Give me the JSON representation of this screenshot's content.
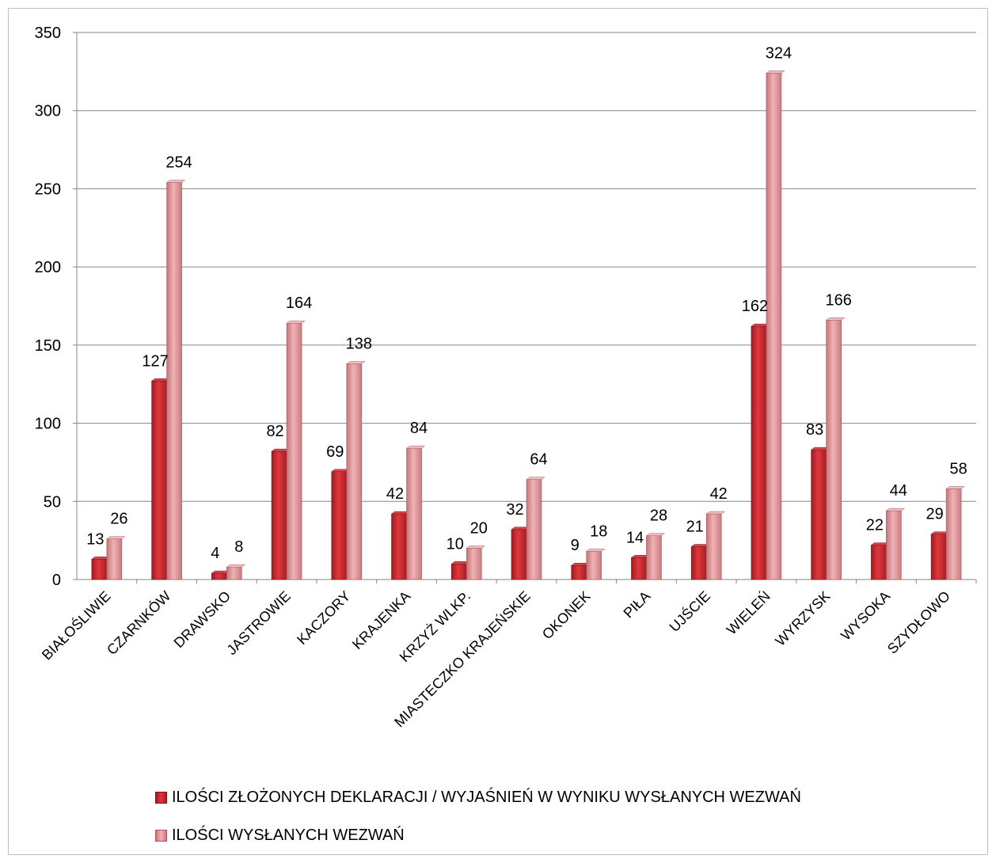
{
  "chart_data": {
    "type": "bar",
    "categories": [
      "BIAŁOŚLIWIE",
      "CZARNKÓW",
      "DRAWSKO",
      "JASTROWIE",
      "KACZORY",
      "KRAJENKA",
      "KRZYŻ WLKP.",
      "MIASTECZKO KRAJEŃSKIE",
      "OKONEK",
      "PIŁA",
      "UJŚCIE",
      "WIELEŃ",
      "WYRZYSK",
      "WYSOKA",
      "SZYDŁOWO"
    ],
    "series": [
      {
        "name": "ILOŚCI ZŁOŻONYCH DEKLARACJI / WYJAŚNIEŃ W WYNIKU WYSŁANYCH WEZWAŃ",
        "values": [
          13,
          127,
          4,
          82,
          69,
          42,
          10,
          32,
          9,
          14,
          21,
          162,
          83,
          22,
          29
        ],
        "color": "#c0282e"
      },
      {
        "name": "ILOŚCI WYSŁANYCH WEZWAŃ",
        "values": [
          26,
          254,
          8,
          164,
          138,
          84,
          20,
          64,
          18,
          28,
          42,
          324,
          166,
          44,
          58
        ],
        "color": "#d98a8e"
      }
    ],
    "ylim": [
      0,
      350
    ],
    "yticks": [
      0,
      50,
      100,
      150,
      200,
      250,
      300,
      350
    ],
    "grid": true,
    "data_labels": true,
    "legend_position": "bottom"
  }
}
